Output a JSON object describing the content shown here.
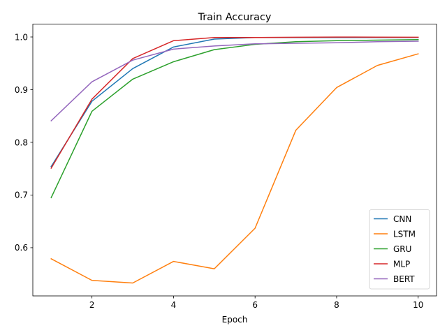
{
  "chart_data": {
    "type": "line",
    "title": "Train Accuracy",
    "xlabel": "Epoch",
    "ylabel": "",
    "x": [
      1,
      2,
      3,
      4,
      5,
      6,
      7,
      8,
      9,
      10
    ],
    "xlim": [
      0.55,
      10.45
    ],
    "ylim": [
      0.5085,
      1.0245
    ],
    "xticks": [
      2,
      4,
      6,
      8,
      10
    ],
    "yticks": [
      0.6,
      0.7,
      0.8,
      0.9,
      1.0
    ],
    "ytick_labels": [
      "0.6",
      "0.7",
      "0.8",
      "0.9",
      "1.0"
    ],
    "grid": false,
    "legend_position": "lower right",
    "series": [
      {
        "name": "CNN",
        "color": "#1f77b4",
        "values": [
          0.754,
          0.878,
          0.94,
          0.981,
          0.996,
          0.999,
          0.999,
          0.999,
          0.999,
          0.999
        ]
      },
      {
        "name": "LSTM",
        "color": "#ff7f0e",
        "values": [
          0.579,
          0.538,
          0.533,
          0.574,
          0.56,
          0.637,
          0.823,
          0.904,
          0.946,
          0.968
        ]
      },
      {
        "name": "GRU",
        "color": "#2ca02c",
        "values": [
          0.695,
          0.859,
          0.92,
          0.953,
          0.976,
          0.986,
          0.991,
          0.993,
          0.994,
          0.995
        ]
      },
      {
        "name": "MLP",
        "color": "#d62728",
        "values": [
          0.751,
          0.882,
          0.959,
          0.993,
          0.999,
          0.999,
          0.9995,
          0.9998,
          0.9997,
          0.9995
        ]
      },
      {
        "name": "BERT",
        "color": "#9467bd",
        "values": [
          0.841,
          0.915,
          0.956,
          0.977,
          0.983,
          0.987,
          0.988,
          0.989,
          0.991,
          0.992
        ]
      }
    ]
  }
}
